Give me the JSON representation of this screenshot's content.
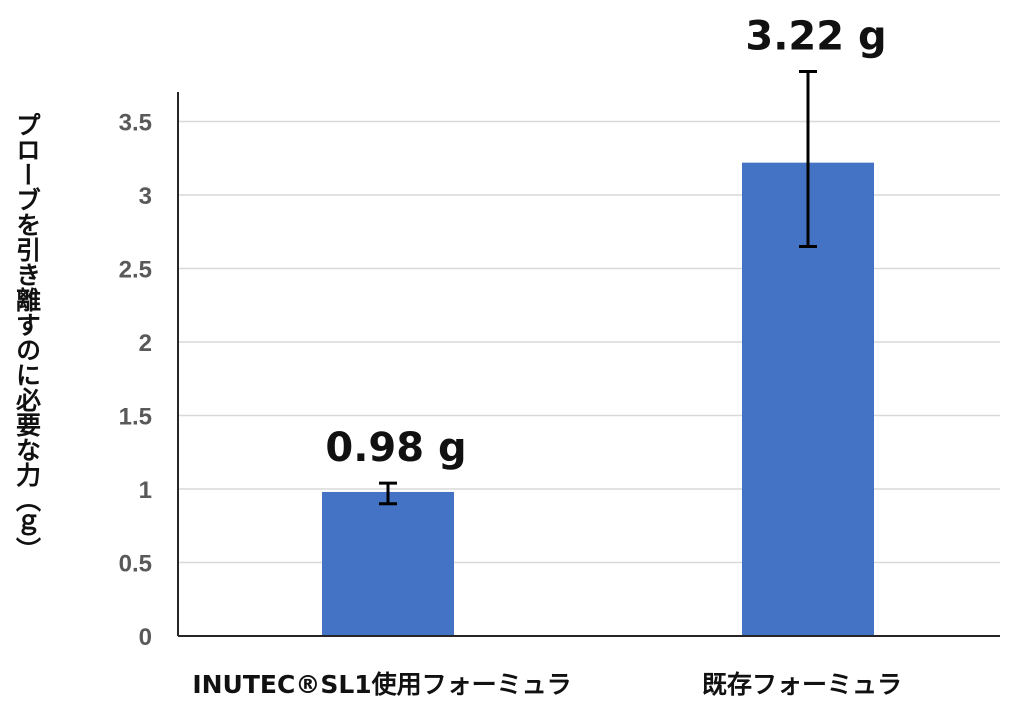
{
  "chart_data": {
    "type": "bar",
    "title": "",
    "xlabel": "",
    "ylabel": "プローブを引き離すのに必要な力（ｇ）",
    "categories": [
      "INUTEC®SL1使用フォーミュラ",
      "既存フォーミュラ"
    ],
    "values": [
      0.98,
      3.22
    ],
    "error_high": [
      1.04,
      3.84
    ],
    "error_low": [
      0.9,
      2.65
    ],
    "data_labels": [
      "0.98 g",
      "3.22 g"
    ],
    "ylim": [
      0,
      3.5
    ],
    "yticks": [
      "0",
      "0.5",
      "1",
      "1.5",
      "2",
      "2.5",
      "3",
      "3.5"
    ],
    "grid": true,
    "legend": "none",
    "colors": {
      "bar": "#4472C4",
      "grid": "#D9D9D9",
      "axis": "#262626",
      "tick": "#595959"
    }
  }
}
